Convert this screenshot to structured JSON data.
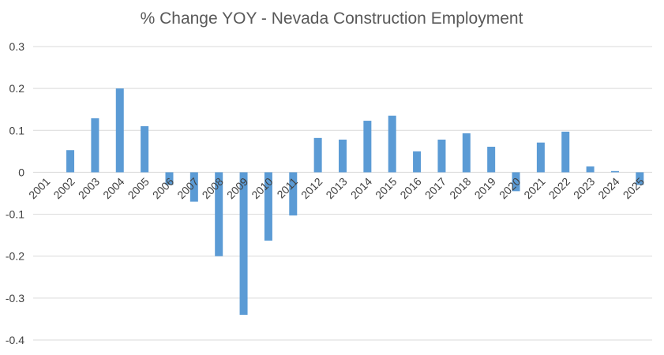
{
  "chart_data": {
    "type": "bar",
    "title": "% Change YOY - Nevada Construction Employment",
    "xlabel": "",
    "ylabel": "",
    "categories": [
      "2001",
      "2002",
      "2003",
      "2004",
      "2005",
      "2006",
      "2007",
      "2008",
      "2009",
      "2010",
      "2011",
      "2012",
      "2013",
      "2014",
      "2015",
      "2016",
      "2017",
      "2018",
      "2019",
      "2020",
      "2021",
      "2022",
      "2023",
      "2024",
      "2025"
    ],
    "values": [
      0.0,
      0.053,
      0.129,
      0.2,
      0.11,
      -0.03,
      -0.07,
      -0.2,
      -0.34,
      -0.163,
      -0.103,
      0.082,
      0.078,
      0.123,
      0.135,
      0.05,
      0.078,
      0.093,
      0.061,
      -0.045,
      0.071,
      0.097,
      0.014,
      0.003,
      -0.03
    ],
    "ylim": [
      -0.4,
      0.3
    ],
    "yticks": [
      0.3,
      0.2,
      0.1,
      0,
      -0.1,
      -0.2,
      -0.3,
      -0.4
    ],
    "ytick_labels": [
      "0.3",
      "0.2",
      "0.1",
      "0",
      "-0.1",
      "-0.2",
      "-0.3",
      "-0.4"
    ],
    "grid": true,
    "legend": "none",
    "colors": {
      "bar": "#5b9bd5",
      "grid": "#d9d9d9",
      "text": "#595959"
    }
  }
}
